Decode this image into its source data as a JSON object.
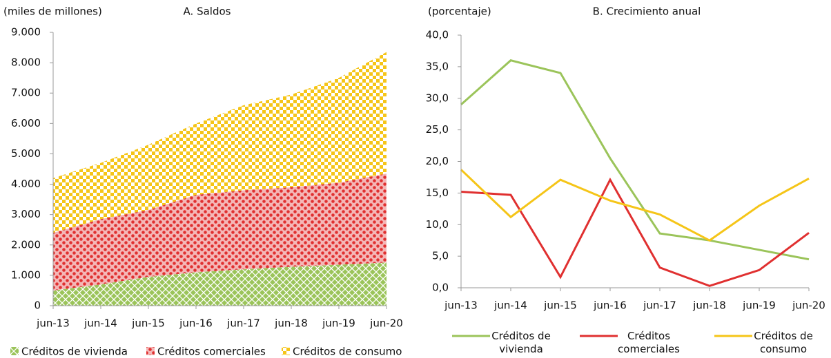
{
  "chart_data": [
    {
      "type": "area",
      "title": "A. Saldos",
      "y_label": "(miles de millones)",
      "categories": [
        "jun-13",
        "jun-14",
        "jun-15",
        "jun-16",
        "jun-17",
        "jun-18",
        "jun-19",
        "jun-20"
      ],
      "series": [
        {
          "name": "Créditos de vivienda",
          "color": "#9bc45a",
          "values": [
            500,
            700,
            950,
            1100,
            1200,
            1280,
            1350,
            1420
          ]
        },
        {
          "name": "Créditos comerciales",
          "color": "#e03030",
          "values": [
            1900,
            2150,
            2200,
            2550,
            2600,
            2620,
            2700,
            2930
          ]
        },
        {
          "name": "Créditos de consumo",
          "color": "#f5c518",
          "values": [
            1800,
            1850,
            2150,
            2350,
            2800,
            3050,
            3450,
            4000
          ]
        }
      ],
      "ylim": [
        0,
        9000
      ],
      "yticks": [
        0,
        {
          "value": 1000,
          "label": "1.000"
        },
        {
          "value": 2000,
          "label": "2.000"
        },
        {
          "value": 3000,
          "label": "3.000"
        },
        {
          "value": 4000,
          "label": "4.000"
        },
        {
          "value": 5000,
          "label": "5.000"
        },
        {
          "value": 6000,
          "label": "6.000"
        },
        {
          "value": 7000,
          "label": "7.000"
        },
        {
          "value": 8000,
          "label": "8.000"
        },
        {
          "value": 9000,
          "label": "9.000"
        }
      ]
    },
    {
      "type": "line",
      "title": "B. Crecimiento anual",
      "y_label": "(porcentaje)",
      "categories": [
        "jun-13",
        "jun-14",
        "jun-15",
        "jun-16",
        "jun-17",
        "jun-18",
        "jun-19",
        "jun-20"
      ],
      "series": [
        {
          "name": "Créditos de vivienda",
          "color": "#9bc45a",
          "values": [
            29,
            36,
            34,
            20.5,
            8.6,
            7.5,
            6,
            4.5
          ]
        },
        {
          "name": "Créditos comerciales",
          "color": "#e03030",
          "values": [
            15.2,
            14.7,
            1.7,
            17.1,
            3.2,
            0.3,
            2.8,
            8.7
          ]
        },
        {
          "name": "Créditos de consumo",
          "color": "#f5c518",
          "values": [
            18.7,
            11.2,
            17.1,
            13.8,
            11.6,
            7.5,
            13,
            17.3
          ]
        }
      ],
      "ylim": [
        0,
        40
      ],
      "yticks": [
        {
          "value": 0,
          "label": "0,0"
        },
        {
          "value": 5,
          "label": "5,0"
        },
        {
          "value": 10,
          "label": "10,0"
        },
        {
          "value": 15,
          "label": "15,0"
        },
        {
          "value": 20,
          "label": "20,0"
        },
        {
          "value": 25,
          "label": "25,0"
        },
        {
          "value": 30,
          "label": "30,0"
        },
        {
          "value": 35,
          "label": "35,0"
        },
        {
          "value": 40,
          "label": "40,0"
        }
      ]
    }
  ]
}
